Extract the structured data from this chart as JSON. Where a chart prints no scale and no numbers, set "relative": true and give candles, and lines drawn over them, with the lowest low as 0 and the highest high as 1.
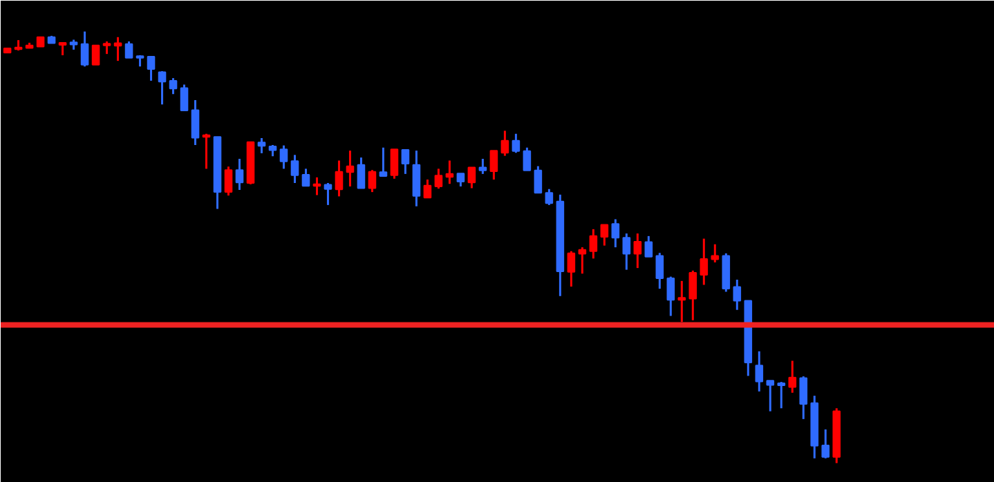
{
  "chart_data": {
    "type": "candlestick",
    "relative": true,
    "tick_labels": false,
    "categories": [
      null,
      null,
      null,
      null,
      null,
      null,
      null,
      null,
      null,
      null,
      null,
      null,
      null,
      null,
      null,
      null,
      null,
      null,
      null,
      null,
      null,
      null,
      null,
      null,
      null,
      null,
      null,
      null,
      null,
      null,
      null,
      null,
      null,
      null,
      null,
      null,
      null,
      null,
      null,
      null,
      null,
      null,
      null,
      null,
      null,
      null,
      null,
      null,
      null,
      null,
      null,
      null,
      null,
      null,
      null,
      null,
      null,
      null,
      null,
      null,
      null,
      null,
      null,
      null,
      null,
      null,
      null,
      null,
      null,
      null,
      null,
      null,
      null,
      null,
      null,
      null
    ],
    "ohlc": [
      [
        0.951,
        0.961,
        0.951,
        0.961
      ],
      [
        0.959,
        0.98,
        0.956,
        0.963
      ],
      [
        0.962,
        0.974,
        0.962,
        0.968
      ],
      [
        0.965,
        0.987,
        0.965,
        0.987
      ],
      [
        0.987,
        0.99,
        0.973,
        0.973
      ],
      [
        0.969,
        0.974,
        0.945,
        0.974
      ],
      [
        0.975,
        0.981,
        0.958,
        0.97
      ],
      [
        0.971,
        1.0,
        0.919,
        0.923
      ],
      [
        0.923,
        0.968,
        0.923,
        0.968
      ],
      [
        0.968,
        0.977,
        0.948,
        0.972
      ],
      [
        0.967,
        0.987,
        0.932,
        0.973
      ],
      [
        0.971,
        0.977,
        0.939,
        0.939
      ],
      [
        0.943,
        0.945,
        0.919,
        0.939
      ],
      [
        0.942,
        0.942,
        0.886,
        0.913
      ],
      [
        0.906,
        0.908,
        0.831,
        0.884
      ],
      [
        0.886,
        0.892,
        0.855,
        0.868
      ],
      [
        0.869,
        0.877,
        0.817,
        0.817
      ],
      [
        0.818,
        0.841,
        0.737,
        0.754
      ],
      [
        0.756,
        0.763,
        0.682,
        0.76
      ],
      [
        0.756,
        0.756,
        0.589,
        0.628
      ],
      [
        0.628,
        0.687,
        0.62,
        0.679
      ],
      [
        0.679,
        0.705,
        0.633,
        0.65
      ],
      [
        0.649,
        0.744,
        0.646,
        0.744
      ],
      [
        0.743,
        0.753,
        0.718,
        0.735
      ],
      [
        0.734,
        0.737,
        0.711,
        0.725
      ],
      [
        0.727,
        0.736,
        0.682,
        0.699
      ],
      [
        0.7,
        0.714,
        0.649,
        0.667
      ],
      [
        0.668,
        0.682,
        0.642,
        0.642
      ],
      [
        0.642,
        0.662,
        0.621,
        0.646
      ],
      [
        0.645,
        0.649,
        0.598,
        0.635
      ],
      [
        0.634,
        0.701,
        0.618,
        0.675
      ],
      [
        0.674,
        0.724,
        0.641,
        0.688
      ],
      [
        0.691,
        0.708,
        0.637,
        0.637
      ],
      [
        0.637,
        0.679,
        0.628,
        0.675
      ],
      [
        0.674,
        0.731,
        0.665,
        0.665
      ],
      [
        0.667,
        0.727,
        0.659,
        0.727
      ],
      [
        0.726,
        0.726,
        0.67,
        0.694
      ],
      [
        0.691,
        0.724,
        0.595,
        0.619
      ],
      [
        0.615,
        0.657,
        0.615,
        0.643
      ],
      [
        0.641,
        0.682,
        0.636,
        0.666
      ],
      [
        0.663,
        0.701,
        0.647,
        0.67
      ],
      [
        0.671,
        0.671,
        0.641,
        0.652
      ],
      [
        0.65,
        0.685,
        0.637,
        0.685
      ],
      [
        0.685,
        0.705,
        0.67,
        0.678
      ],
      [
        0.676,
        0.724,
        0.657,
        0.724
      ],
      [
        0.719,
        0.77,
        0.712,
        0.747
      ],
      [
        0.747,
        0.763,
        0.719,
        0.723
      ],
      [
        0.723,
        0.731,
        0.678,
        0.678
      ],
      [
        0.678,
        0.688,
        0.626,
        0.626
      ],
      [
        0.626,
        0.635,
        0.598,
        0.602
      ],
      [
        0.606,
        0.622,
        0.387,
        0.444
      ],
      [
        0.443,
        0.491,
        0.409,
        0.486
      ],
      [
        0.485,
        0.5,
        0.439,
        0.494
      ],
      [
        0.491,
        0.542,
        0.474,
        0.526
      ],
      [
        0.524,
        0.552,
        0.504,
        0.552
      ],
      [
        0.554,
        0.565,
        0.5,
        0.522
      ],
      [
        0.522,
        0.532,
        0.448,
        0.485
      ],
      [
        0.485,
        0.532,
        0.452,
        0.513
      ],
      [
        0.512,
        0.526,
        0.478,
        0.478
      ],
      [
        0.48,
        0.487,
        0.404,
        0.428
      ],
      [
        0.428,
        0.432,
        0.341,
        0.378
      ],
      [
        0.378,
        0.422,
        0.327,
        0.383
      ],
      [
        0.381,
        0.446,
        0.331,
        0.441
      ],
      [
        0.436,
        0.52,
        0.413,
        0.473
      ],
      [
        0.472,
        0.507,
        0.465,
        0.48
      ],
      [
        0.48,
        0.486,
        0.397,
        0.404
      ],
      [
        0.408,
        0.425,
        0.355,
        0.376
      ],
      [
        0.376,
        0.376,
        0.202,
        0.233
      ],
      [
        0.226,
        0.259,
        0.166,
        0.189
      ],
      [
        0.191,
        0.191,
        0.12,
        0.181
      ],
      [
        0.185,
        0.188,
        0.127,
        0.18
      ],
      [
        0.176,
        0.237,
        0.163,
        0.198
      ],
      [
        0.197,
        0.201,
        0.102,
        0.137
      ],
      [
        0.139,
        0.156,
        0.011,
        0.04
      ],
      [
        0.041,
        0.078,
        0.011,
        0.014
      ],
      [
        0.014,
        0.127,
        0.0,
        0.12
      ]
    ],
    "colors": [
      "#ff0000",
      "#ff0000",
      "#ff0000",
      "#ff0000",
      "#2f6bff",
      "#ff0000",
      "#2f6bff",
      "#2f6bff",
      "#ff0000",
      "#ff0000",
      "#ff0000",
      "#2f6bff",
      "#2f6bff",
      "#2f6bff",
      "#2f6bff",
      "#2f6bff",
      "#2f6bff",
      "#2f6bff",
      "#ff0000",
      "#2f6bff",
      "#ff0000",
      "#2f6bff",
      "#ff0000",
      "#2f6bff",
      "#2f6bff",
      "#2f6bff",
      "#2f6bff",
      "#2f6bff",
      "#ff0000",
      "#2f6bff",
      "#ff0000",
      "#ff0000",
      "#2f6bff",
      "#ff0000",
      "#2f6bff",
      "#ff0000",
      "#2f6bff",
      "#2f6bff",
      "#ff0000",
      "#ff0000",
      "#ff0000",
      "#2f6bff",
      "#ff0000",
      "#2f6bff",
      "#ff0000",
      "#ff0000",
      "#2f6bff",
      "#2f6bff",
      "#2f6bff",
      "#2f6bff",
      "#2f6bff",
      "#ff0000",
      "#ff0000",
      "#ff0000",
      "#ff0000",
      "#2f6bff",
      "#2f6bff",
      "#ff0000",
      "#2f6bff",
      "#2f6bff",
      "#2f6bff",
      "#ff0000",
      "#ff0000",
      "#ff0000",
      "#ff0000",
      "#2f6bff",
      "#2f6bff",
      "#2f6bff",
      "#2f6bff",
      "#2f6bff",
      "#2f6bff",
      "#ff0000",
      "#2f6bff",
      "#2f6bff",
      "#2f6bff",
      "#ff0000"
    ],
    "ref_lines": [
      {
        "axis": "y",
        "value": 0.32,
        "color": "#ee2222"
      }
    ]
  }
}
